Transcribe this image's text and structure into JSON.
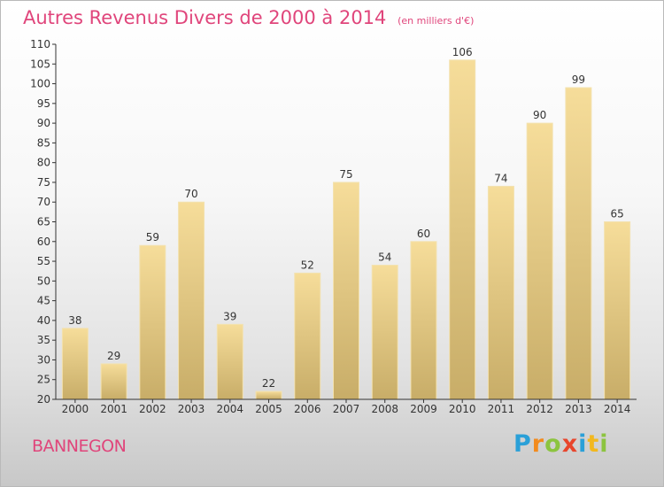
{
  "header": {
    "title": "Autres Revenus Divers de 2000 à 2014",
    "subtitle": "(en milliers d'€)"
  },
  "footer": {
    "commune": "BANNEGON",
    "logo_letters": [
      "P",
      "r",
      "o",
      "x",
      "i",
      "t",
      "i"
    ]
  },
  "colors": {
    "accent": "#e0457b",
    "bar_top": "#f6dd9a",
    "bar_bottom": "#c8ad68"
  },
  "chart_data": {
    "type": "bar",
    "categories": [
      "2000",
      "2001",
      "2002",
      "2003",
      "2004",
      "2005",
      "2006",
      "2007",
      "2008",
      "2009",
      "2010",
      "2011",
      "2012",
      "2013",
      "2014"
    ],
    "values": [
      38,
      29,
      59,
      70,
      39,
      22,
      52,
      75,
      54,
      60,
      106,
      74,
      90,
      99,
      65
    ],
    "data_labels": [
      "38",
      "29",
      "59",
      "70",
      "39",
      "22",
      "52",
      "75",
      "54",
      "60",
      "106",
      "74",
      "90",
      "99",
      "65"
    ],
    "title": "Autres Revenus Divers de 2000 à 2014",
    "subtitle": "(en milliers d'€)",
    "xlabel": "",
    "ylabel": "",
    "ylim": [
      20,
      110
    ],
    "yticks": [
      20,
      25,
      30,
      35,
      40,
      45,
      50,
      55,
      60,
      65,
      70,
      75,
      80,
      85,
      90,
      95,
      100,
      105,
      110
    ],
    "grid": false,
    "legend": "none"
  }
}
